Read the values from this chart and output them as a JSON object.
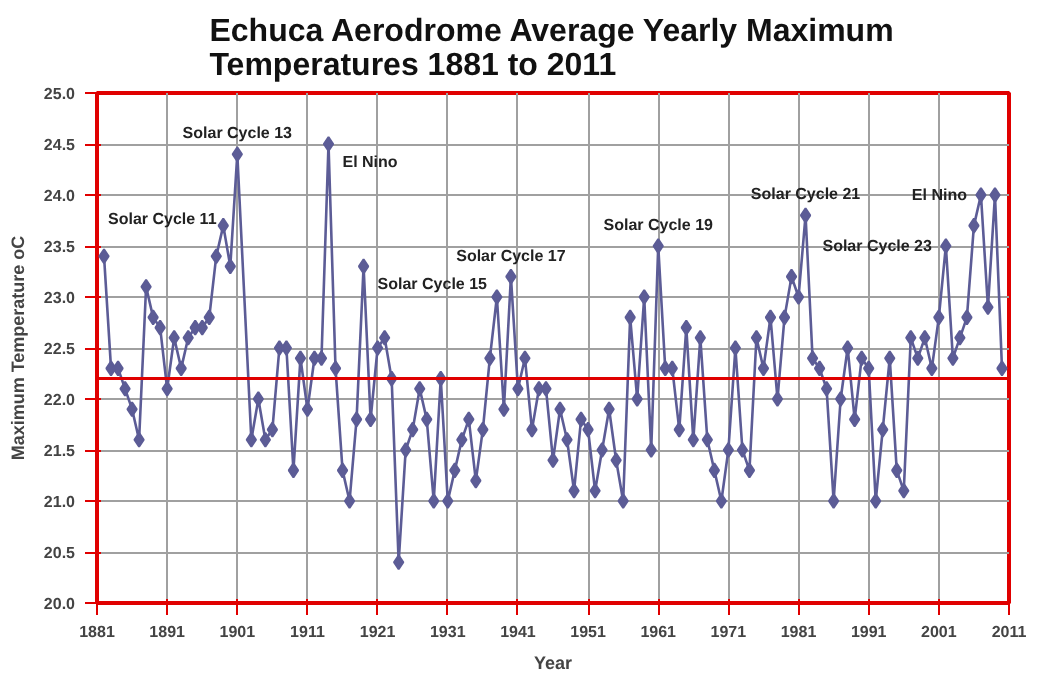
{
  "chart_data": {
    "type": "line",
    "title": "Echuca Aerodrome Average Yearly Maximum Temperatures 1881 to 2011",
    "xlabel": "Year",
    "ylabel": "Maximum Temperature oC",
    "x": [
      1882,
      1883,
      1884,
      1885,
      1886,
      1887,
      1888,
      1889,
      1890,
      1891,
      1892,
      1893,
      1894,
      1895,
      1896,
      1897,
      1898,
      1899,
      1900,
      1901,
      1903,
      1904,
      1905,
      1906,
      1907,
      1908,
      1909,
      1910,
      1911,
      1912,
      1913,
      1914,
      1915,
      1916,
      1917,
      1918,
      1919,
      1920,
      1921,
      1922,
      1923,
      1924,
      1925,
      1926,
      1927,
      1928,
      1929,
      1930,
      1931,
      1932,
      1933,
      1934,
      1935,
      1936,
      1937,
      1938,
      1939,
      1940,
      1941,
      1942,
      1943,
      1944,
      1945,
      1946,
      1947,
      1948,
      1949,
      1950,
      1951,
      1952,
      1953,
      1954,
      1955,
      1956,
      1957,
      1958,
      1959,
      1960,
      1961,
      1962,
      1963,
      1964,
      1965,
      1966,
      1967,
      1968,
      1969,
      1970,
      1971,
      1972,
      1973,
      1974,
      1975,
      1976,
      1977,
      1978,
      1979,
      1980,
      1981,
      1982,
      1983,
      1984,
      1985,
      1986,
      1987,
      1988,
      1989,
      1990,
      1991,
      1992,
      1993,
      1994,
      1995,
      1996,
      1997,
      1998,
      1999,
      2000,
      2001,
      2002,
      2003,
      2004,
      2005,
      2006,
      2007,
      2008,
      2009,
      2010
    ],
    "series": [
      {
        "color": "#5c5c96",
        "values": [
          23.4,
          22.3,
          22.3,
          22.1,
          21.9,
          21.6,
          23.1,
          22.8,
          22.7,
          22.1,
          22.6,
          22.3,
          22.6,
          22.7,
          22.7,
          22.8,
          23.4,
          23.7,
          23.3,
          24.4,
          21.6,
          22.0,
          21.6,
          21.7,
          22.5,
          22.5,
          21.3,
          22.4,
          21.9,
          22.4,
          22.4,
          24.5,
          22.3,
          21.3,
          21.0,
          21.8,
          23.3,
          21.8,
          22.5,
          22.6,
          22.2,
          20.4,
          21.5,
          21.7,
          22.1,
          21.8,
          21.0,
          22.2,
          21.0,
          21.3,
          21.6,
          21.8,
          21.2,
          21.7,
          22.4,
          23.0,
          21.9,
          23.2,
          22.1,
          22.4,
          21.7,
          22.1,
          22.1,
          21.4,
          21.9,
          21.6,
          21.1,
          21.8,
          21.7,
          21.1,
          21.5,
          21.9,
          21.4,
          21.0,
          22.8,
          22.0,
          23.0,
          21.5,
          23.5,
          22.3,
          22.3,
          21.7,
          22.7,
          21.6,
          22.6,
          21.6,
          21.3,
          21.0,
          21.5,
          22.5,
          21.5,
          21.3,
          22.6,
          22.3,
          22.8,
          22.0,
          22.8,
          23.2,
          23.0,
          23.8,
          22.4,
          22.3,
          22.1,
          21.0,
          22.0,
          22.5,
          21.8,
          22.4,
          22.3,
          21.0,
          21.7,
          22.4,
          21.3,
          21.1,
          22.6,
          22.4,
          22.6,
          22.3,
          22.8,
          23.5,
          22.4,
          22.6,
          22.8,
          23.7,
          24.0,
          22.9,
          24.0,
          22.3
        ]
      }
    ],
    "xlim": [
      1881,
      2011
    ],
    "xticks": [
      1881,
      1891,
      1901,
      1911,
      1921,
      1931,
      1941,
      1951,
      1961,
      1971,
      1981,
      1991,
      2001,
      2011
    ],
    "ylim": [
      20,
      25
    ],
    "yticks": [
      {
        "value": 20,
        "label": "20.0"
      },
      {
        "value": 20.5,
        "label": "20.5"
      },
      {
        "value": 21,
        "label": "21.0"
      },
      {
        "value": 21.5,
        "label": "21.5"
      },
      {
        "value": 22,
        "label": "22.0"
      },
      {
        "value": 22.5,
        "label": "22.5"
      },
      {
        "value": 23,
        "label": "23.0"
      },
      {
        "value": 23.5,
        "label": "23.5"
      },
      {
        "value": 24,
        "label": "24.0"
      },
      {
        "value": 24.5,
        "label": "24.5"
      },
      {
        "value": 25,
        "label": "25.0"
      }
    ],
    "ref_lines": [
      {
        "axis": "y",
        "value": 22.2,
        "color": "#e00000"
      }
    ],
    "annotations": [
      {
        "text": "Solar Cycle 11",
        "x": 1882,
        "y": 23.4
      },
      {
        "text": "Solar Cycle 13",
        "x": 1901,
        "y": 24.4
      },
      {
        "text": "El Nino",
        "x": 1914,
        "y": 24.5
      },
      {
        "text": "Solar Cycle 15",
        "x": 1919,
        "y": 23.3
      },
      {
        "text": "Solar Cycle 17",
        "x": 1940,
        "y": 23.2
      },
      {
        "text": "Solar Cycle 19",
        "x": 1961,
        "y": 23.5
      },
      {
        "text": "Solar Cycle 21",
        "x": 1982,
        "y": 23.8
      },
      {
        "text": "Solar Cycle 23",
        "x": 2002,
        "y": 23.5
      },
      {
        "text": "El Nino",
        "x": 2007,
        "y": 24.0
      }
    ],
    "grid": true,
    "marker": "diamond",
    "line_style": "solid"
  }
}
